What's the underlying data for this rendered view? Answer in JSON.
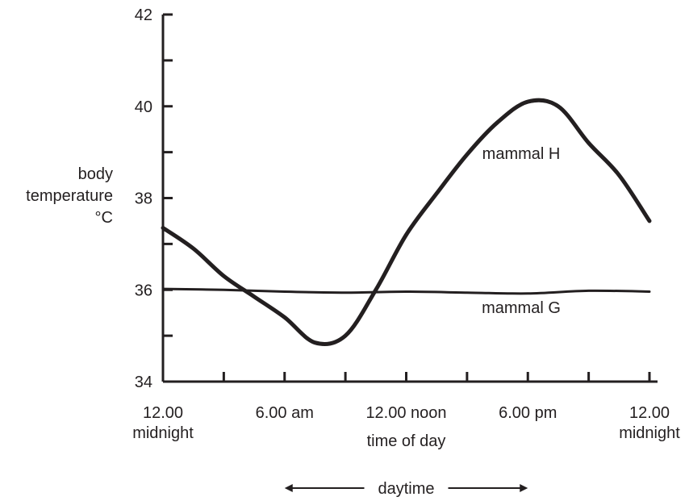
{
  "chart_data": {
    "type": "line",
    "ylabel": [
      "body",
      "temperature",
      "°C"
    ],
    "xlabel": "time of day",
    "ylim": [
      34,
      42
    ],
    "xlim": [
      0,
      24
    ],
    "y_ticks": [
      34,
      35,
      36,
      37,
      38,
      39,
      40,
      41,
      42
    ],
    "y_tick_labels": [
      "34",
      "36",
      "38",
      "40",
      "42"
    ],
    "x_ticks": [
      0,
      3,
      6,
      9,
      12,
      15,
      18,
      21,
      24
    ],
    "x_tick_labels": [
      {
        "x": 0,
        "lines": [
          "12.00",
          "midnight"
        ]
      },
      {
        "x": 6,
        "lines": [
          "6.00 am"
        ]
      },
      {
        "x": 12,
        "lines": [
          "12.00 noon"
        ]
      },
      {
        "x": 18,
        "lines": [
          "6.00 pm"
        ]
      },
      {
        "x": 24,
        "lines": [
          "12.00",
          "midnight"
        ]
      }
    ],
    "series": [
      {
        "name": "mammal H",
        "x": [
          0,
          1.5,
          3,
          4.5,
          6,
          7.5,
          9,
          10.5,
          12,
          13.5,
          15,
          16.5,
          18,
          19.5,
          21,
          22.5,
          24
        ],
        "y": [
          37.35,
          36.9,
          36.3,
          35.85,
          35.4,
          34.85,
          35.0,
          36.0,
          37.2,
          38.1,
          38.95,
          39.65,
          40.1,
          40.0,
          39.2,
          38.5,
          37.5
        ]
      },
      {
        "name": "mammal G",
        "x": [
          0,
          3,
          6,
          9,
          12,
          15,
          18,
          21,
          24
        ],
        "y": [
          36.02,
          36.0,
          35.96,
          35.94,
          35.96,
          35.94,
          35.92,
          35.98,
          35.96
        ]
      }
    ],
    "daytime": {
      "label": "daytime",
      "from": 6,
      "to": 18
    }
  }
}
